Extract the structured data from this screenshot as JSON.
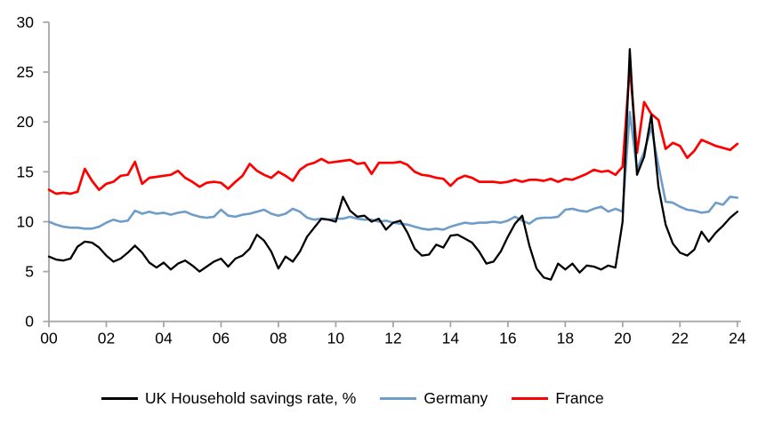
{
  "chart_data": {
    "type": "line",
    "title": "",
    "frequency": "quarterly",
    "x_start": "2000Q1",
    "x_end": "2024Q1",
    "x_axis": {
      "tick_labels": [
        "00",
        "02",
        "04",
        "06",
        "08",
        "10",
        "12",
        "14",
        "16",
        "18",
        "20",
        "22",
        "24"
      ],
      "years_span": 24
    },
    "y_axis": {
      "min": 0,
      "max": 30,
      "step": 5,
      "tick_labels": [
        "0",
        "5",
        "10",
        "15",
        "20",
        "25",
        "30"
      ]
    },
    "grid": "off",
    "legend_position": "bottom",
    "axis_color": "#a6a6a6",
    "series": [
      {
        "name": "UK Household savings rate, %",
        "color": "#000000",
        "values": [
          6.5,
          6.2,
          6.1,
          6.3,
          7.5,
          8.0,
          7.9,
          7.4,
          6.6,
          6.0,
          6.3,
          6.9,
          7.6,
          6.9,
          5.9,
          5.4,
          5.9,
          5.2,
          5.8,
          6.1,
          5.6,
          5.0,
          5.5,
          6.0,
          6.3,
          5.5,
          6.3,
          6.6,
          7.3,
          8.7,
          8.1,
          7.0,
          5.3,
          6.5,
          6.0,
          7.0,
          8.5,
          9.4,
          10.3,
          10.2,
          10.0,
          12.5,
          11.1,
          10.5,
          10.6,
          10.0,
          10.3,
          9.2,
          9.9,
          10.1,
          8.9,
          7.3,
          6.6,
          6.7,
          7.7,
          7.4,
          8.6,
          8.7,
          8.3,
          7.9,
          7.0,
          5.8,
          6.0,
          7.0,
          8.5,
          9.8,
          10.6,
          7.6,
          5.3,
          4.4,
          4.2,
          5.8,
          5.2,
          5.8,
          4.9,
          5.6,
          5.5,
          5.2,
          5.6,
          5.4,
          10.0,
          27.3,
          14.7,
          16.5,
          20.7,
          13.5,
          9.7,
          7.8,
          6.9,
          6.6,
          7.2,
          9.0,
          8.0,
          8.9,
          9.6,
          10.4,
          11.0
        ]
      },
      {
        "name": "Germany",
        "color": "#6d9dc8",
        "values": [
          10.0,
          9.7,
          9.5,
          9.4,
          9.4,
          9.3,
          9.3,
          9.5,
          9.9,
          10.2,
          10.0,
          10.1,
          11.1,
          10.8,
          11.0,
          10.8,
          10.9,
          10.7,
          10.9,
          11.0,
          10.7,
          10.5,
          10.4,
          10.5,
          11.2,
          10.6,
          10.5,
          10.7,
          10.8,
          11.0,
          11.2,
          10.8,
          10.6,
          10.8,
          11.3,
          11.0,
          10.4,
          10.2,
          10.3,
          10.2,
          10.3,
          10.3,
          10.5,
          10.3,
          10.2,
          10.2,
          10.0,
          10.1,
          9.9,
          9.8,
          9.7,
          9.5,
          9.3,
          9.2,
          9.3,
          9.2,
          9.5,
          9.7,
          9.9,
          9.8,
          9.9,
          9.9,
          10.0,
          9.9,
          10.1,
          10.5,
          10.1,
          9.8,
          10.3,
          10.4,
          10.4,
          10.5,
          11.2,
          11.3,
          11.1,
          11.0,
          11.3,
          11.5,
          11.0,
          11.3,
          11.0,
          21.0,
          15.2,
          17.0,
          19.5,
          15.6,
          12.0,
          11.9,
          11.5,
          11.2,
          11.1,
          10.9,
          11.0,
          11.9,
          11.7,
          12.5,
          12.4
        ]
      },
      {
        "name": "France",
        "color": "#ff0000",
        "values": [
          13.2,
          12.8,
          12.9,
          12.8,
          13.0,
          15.3,
          14.1,
          13.2,
          13.8,
          14.0,
          14.6,
          14.7,
          16.0,
          13.8,
          14.4,
          14.5,
          14.6,
          14.7,
          15.1,
          14.4,
          14.0,
          13.5,
          13.9,
          14.0,
          13.9,
          13.3,
          14.0,
          14.6,
          15.8,
          15.1,
          14.7,
          14.4,
          15.0,
          14.6,
          14.1,
          15.2,
          15.7,
          15.9,
          16.3,
          15.9,
          16.0,
          16.1,
          16.2,
          15.8,
          15.9,
          14.8,
          15.9,
          15.9,
          15.9,
          16.0,
          15.7,
          15.0,
          14.7,
          14.6,
          14.4,
          14.3,
          13.6,
          14.3,
          14.6,
          14.4,
          14.0,
          14.0,
          14.0,
          13.9,
          14.0,
          14.2,
          14.0,
          14.2,
          14.2,
          14.1,
          14.3,
          14.0,
          14.3,
          14.2,
          14.5,
          14.8,
          15.2,
          15.0,
          15.1,
          14.7,
          15.5,
          25.6,
          16.9,
          22.0,
          20.8,
          20.2,
          17.3,
          17.9,
          17.6,
          16.4,
          17.1,
          18.2,
          17.9,
          17.6,
          17.4,
          17.2,
          17.8
        ]
      }
    ]
  }
}
